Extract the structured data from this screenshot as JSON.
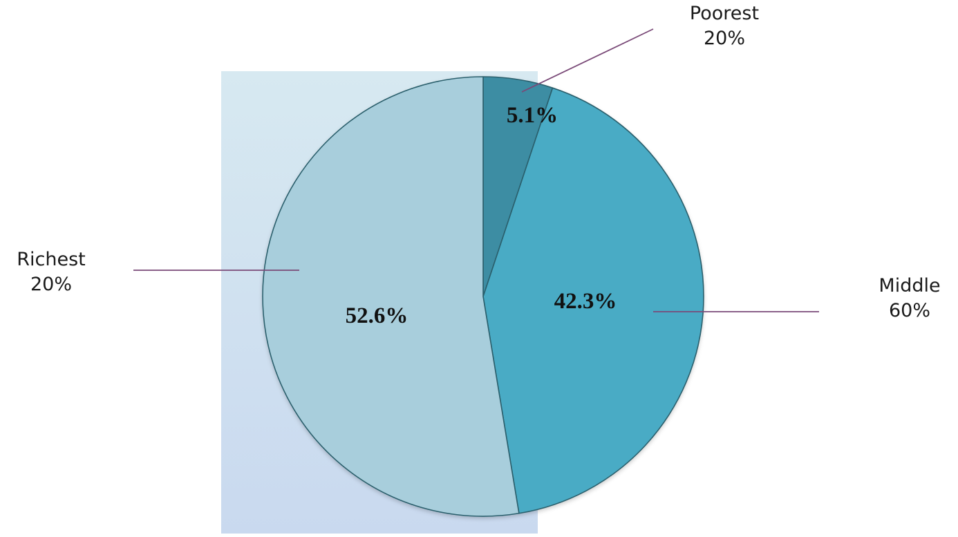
{
  "chart_data": {
    "type": "pie",
    "title": "",
    "slices": [
      {
        "name": "Poorest",
        "sub": "20%",
        "value": 5.1,
        "label": "5.1%",
        "color": "#3c8da3"
      },
      {
        "name": "Middle",
        "sub": "60%",
        "value": 42.3,
        "label": "42.3%",
        "color": "#4aabc5"
      },
      {
        "name": "Richest",
        "sub": "20%",
        "value": 52.6,
        "label": "52.6%",
        "color": "#a8cedc"
      }
    ],
    "start_angle_deg": 0,
    "direction": "clockwise",
    "legend": "none",
    "colors": {
      "panel_top": "#d7e9f1",
      "panel_bottom": "#c9d9ef",
      "slice_stroke": "#2c5f6c",
      "leader_line": "#7a4a78"
    }
  }
}
